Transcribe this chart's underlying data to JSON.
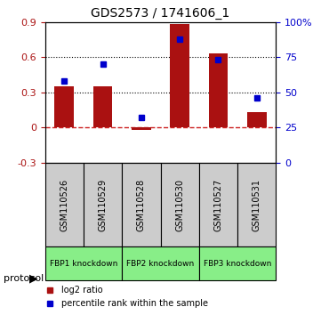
{
  "title": "GDS2573 / 1741606_1",
  "samples": [
    "GSM110526",
    "GSM110529",
    "GSM110528",
    "GSM110530",
    "GSM110527",
    "GSM110531"
  ],
  "log2_ratio": [
    0.35,
    0.35,
    -0.02,
    0.88,
    0.63,
    0.13
  ],
  "percentile_rank": [
    0.58,
    0.7,
    0.32,
    0.88,
    0.73,
    0.46
  ],
  "ylim_left": [
    -0.3,
    0.9
  ],
  "ylim_right": [
    0,
    100
  ],
  "yticks_left": [
    -0.3,
    0.0,
    0.3,
    0.6,
    0.9
  ],
  "yticks_right": [
    0,
    25,
    50,
    75,
    100
  ],
  "ytick_labels_left": [
    "-0.3",
    "0",
    "0.3",
    "0.6",
    "0.9"
  ],
  "ytick_labels_right": [
    "0",
    "25",
    "50",
    "75",
    "100%"
  ],
  "hlines": [
    0.3,
    0.6
  ],
  "bar_color": "#aa1111",
  "dot_color": "#0000cc",
  "zero_line_color": "#cc2222",
  "groups": [
    {
      "label": "FBP1 knockdown",
      "start": 0,
      "end": 2,
      "color": "#aaffaa"
    },
    {
      "label": "FBP2 knockdown",
      "start": 2,
      "end": 4,
      "color": "#aaffaa"
    },
    {
      "label": "FBP3 knockdown",
      "start": 4,
      "end": 6,
      "color": "#aaffaa"
    }
  ],
  "protocol_label": "protocol",
  "legend_items": [
    {
      "label": "log2 ratio",
      "color": "#aa1111",
      "marker": "s"
    },
    {
      "label": "percentile rank within the sample",
      "color": "#0000cc",
      "marker": "s"
    }
  ]
}
